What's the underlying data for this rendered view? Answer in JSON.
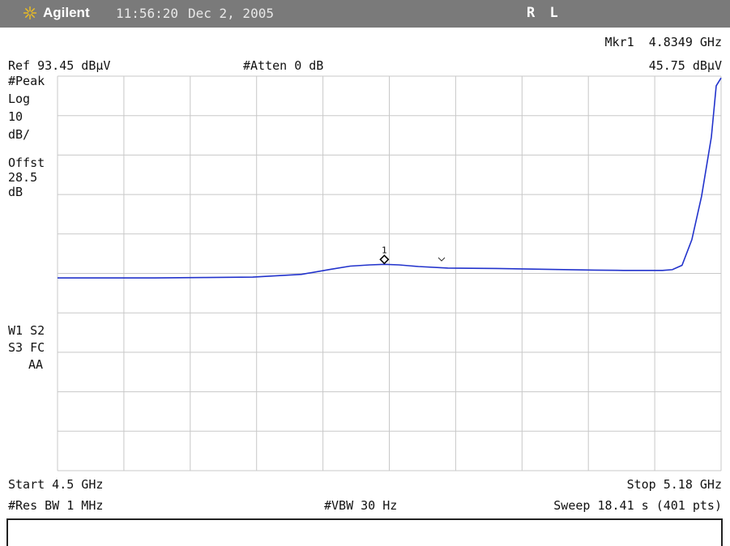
{
  "titlebar": {
    "brand": "Agilent",
    "time": "11:56:20",
    "date": "Dec 2, 2005",
    "mode": "R L"
  },
  "marker": {
    "label": "Mkr1",
    "freq": "4.8349 GHz",
    "level": "45.75 dBµV",
    "id": "1"
  },
  "reference": {
    "ref_level": "Ref 93.45 dBµV",
    "attenuation": "#Atten 0 dB"
  },
  "left_panel": {
    "detector": "#Peak",
    "scale_type": "Log",
    "scale_div": "10",
    "scale_unit": "dB/",
    "offset_label": "Offst",
    "offset_value": "28.5",
    "offset_unit": "dB",
    "trace_line1": "W1  S2",
    "trace_line2": "S3  FC",
    "trace_line3": "AA"
  },
  "footer": {
    "start": "Start 4.5 GHz",
    "stop": "Stop 5.18 GHz",
    "res_bw": "#Res BW 1 MHz",
    "vbw": "#VBW 30 Hz",
    "sweep": "Sweep 18.41 s (401 pts)"
  },
  "colors": {
    "trace": "#2233cc",
    "grid": "#c8c8c8",
    "titlebar": "#7a7a7a",
    "logo": "#f0c020"
  },
  "chart_data": {
    "type": "line",
    "xlim": [
      4.5,
      5.18
    ],
    "ylim": [
      -6.55,
      93.45
    ],
    "grid": true,
    "x": [
      4.5,
      4.55,
      4.6,
      4.65,
      4.7,
      4.75,
      4.78,
      4.8,
      4.82,
      4.8349,
      4.85,
      4.87,
      4.9,
      4.95,
      5.0,
      5.05,
      5.08,
      5.1,
      5.12,
      5.13,
      5.14,
      5.15,
      5.16,
      5.17,
      5.175,
      5.18
    ],
    "values": [
      42.3,
      42.3,
      42.3,
      42.4,
      42.5,
      43.2,
      44.5,
      45.3,
      45.6,
      45.75,
      45.6,
      45.2,
      44.8,
      44.7,
      44.5,
      44.3,
      44.2,
      44.2,
      44.2,
      44.4,
      45.5,
      52,
      63,
      78,
      91,
      93
    ]
  }
}
